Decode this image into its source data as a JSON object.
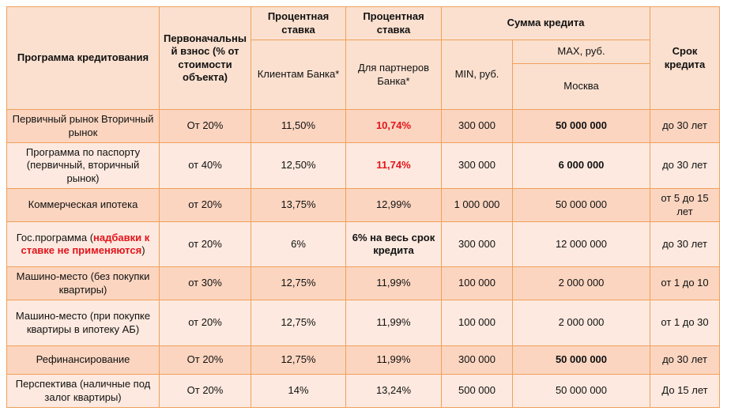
{
  "header": {
    "program": "Программа кредитования",
    "down_payment": "Первоначальный взнос (% от стоимости объекта)",
    "rate_clients_title": "Процентная ставка",
    "rate_clients_sub": "Клиентам Банка*",
    "rate_partners_title": "Процентная ставка",
    "rate_partners_sub": "Для партнеров Банка*",
    "sum_title": "Сумма кредита",
    "min_label": "MIN, руб.",
    "max_label": "MAX, руб.",
    "moscow_label": "Москва",
    "term": "Срок кредита"
  },
  "rows": [
    {
      "program": "Первичный рынок Вторичный рынок",
      "down": "От 20%",
      "rate_clients": "11,50%",
      "rate_partners": "10,74%",
      "min": "300 000",
      "max": "50 000 000",
      "term": "до 30 лет"
    },
    {
      "program": "Программа по паспорту (первичный, вторичный рынок)",
      "down": "от 40%",
      "rate_clients": "12,50%",
      "rate_partners": "11,74%",
      "min": "300 000",
      "max": "6 000 000",
      "term": "до 30 лет"
    },
    {
      "program": "Коммерческая ипотека",
      "down": "от 20%",
      "rate_clients": "13,75%",
      "rate_partners": "12,99%",
      "min": "1 000 000",
      "max": "50 000 000",
      "term": "от 5 до 15 лет"
    },
    {
      "program": "Гос.программа (",
      "program_note": "надбавки к ставке не применяются",
      "program_tail": ")",
      "down": "от 20%",
      "rate_clients": "6%",
      "rate_partners": "6% на весь срок кредита",
      "min": "300 000",
      "max": "12 000 000",
      "term": "до 30 лет"
    },
    {
      "program": "Машино-место (без покупки квартиры)",
      "down": "от 30%",
      "rate_clients": "12,75%",
      "rate_partners": "11,99%",
      "min": "100 000",
      "max": "2 000 000",
      "term": "от 1 до 10"
    },
    {
      "program": "Машино-место (при покупке квартиры в ипотеку АБ)",
      "down": "от 20%",
      "rate_clients": "12,75%",
      "rate_partners": "11,99%",
      "min": "100 000",
      "max": "2 000 000",
      "term": "от 1 до 30"
    },
    {
      "program": "Рефинансирование",
      "down": "От 20%",
      "rate_clients": "12,75%",
      "rate_partners": "11,99%",
      "min": "300 000",
      "max": "50 000 000",
      "term": "до 30 лет"
    },
    {
      "program": "Перспектива (наличные под залог квартиры)",
      "down": "От 20%",
      "rate_clients": "14%",
      "rate_partners": "13,24%",
      "min": "500 000",
      "max": "50 000 000",
      "term": "До 15 лет"
    }
  ],
  "colors": {
    "border": "#f0a05a",
    "header_bg": "#fbe0cf",
    "row_dark": "#fbd5c0",
    "row_light": "#fde9df",
    "accent_red": "#e3151d"
  }
}
